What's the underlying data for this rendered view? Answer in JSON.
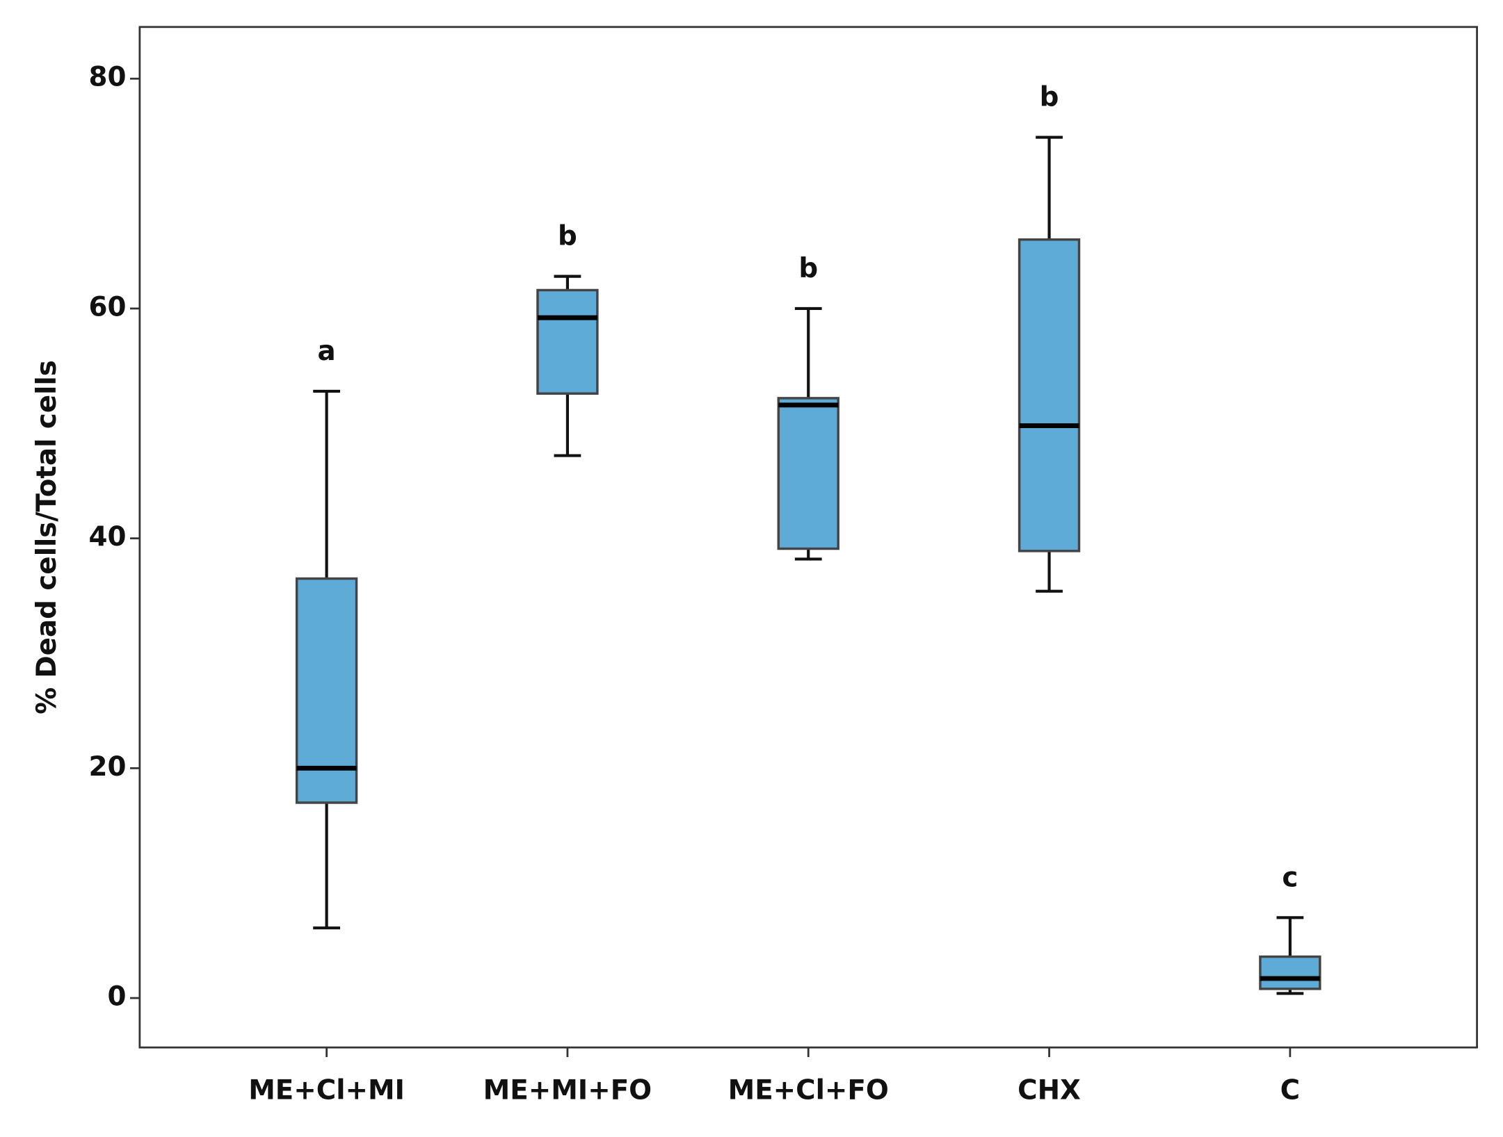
{
  "chart_data": {
    "type": "box",
    "y_label": "% Dead cells/Total cells",
    "categories": [
      "ME+Cl+MI",
      "ME+MI+FO",
      "ME+Cl+FO",
      "CHX",
      "C"
    ],
    "whisker_low": [
      6.1,
      47.2,
      38.2,
      35.4,
      0.4
    ],
    "q1": [
      17.0,
      52.6,
      39.1,
      38.9,
      0.8
    ],
    "median": [
      20.0,
      59.2,
      51.6,
      49.8,
      1.7
    ],
    "q3": [
      36.5,
      61.6,
      52.2,
      66.0,
      3.6
    ],
    "whisker_high": [
      52.8,
      62.8,
      60.0,
      74.9,
      7.0
    ],
    "annotations": [
      "a",
      "b",
      "b",
      "b",
      "c"
    ],
    "color": "#5fabd8",
    "ylim": [
      -4.3,
      84.5
    ],
    "yticks": [
      0,
      20,
      40,
      60,
      80
    ]
  }
}
